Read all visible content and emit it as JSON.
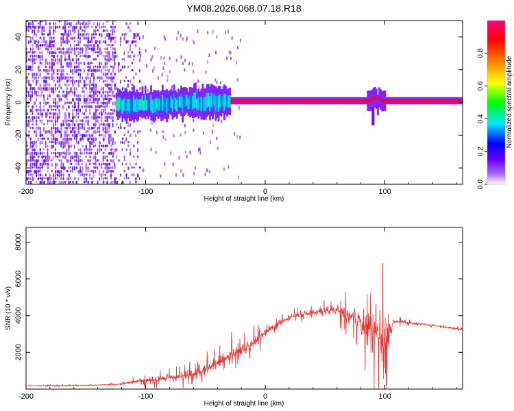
{
  "title": "YM08.2026.068.07.18.R18",
  "chart_data": [
    {
      "type": "heatmap",
      "name": "spectrogram",
      "xlabel": "Height of straight line (km)",
      "ylabel": "Frequency (Hz)",
      "xlim": [
        -200,
        165
      ],
      "ylim": [
        -50,
        50
      ],
      "x_ticks": [
        -200,
        -100,
        0,
        100
      ],
      "y_ticks": [
        -40,
        -20,
        0,
        20,
        40
      ],
      "colorbar": {
        "label": "Normalized spectral amplitude",
        "range": [
          0,
          1
        ],
        "ticks": [
          0.0,
          0.2,
          0.4,
          0.6,
          0.8
        ],
        "colormap": [
          "#ffffff",
          "#7a00ff",
          "#0000ff",
          "#00e5ff",
          "#00ff00",
          "#ffff00",
          "#ff8000",
          "#ff0000",
          "#ff0080"
        ]
      },
      "description_regions": [
        {
          "x_range": [
            -200,
            -120
          ],
          "freq_range": [
            -50,
            50
          ],
          "level": 0.1
        },
        {
          "x_range": [
            -120,
            -30
          ],
          "freq_center": 0,
          "freq_halfwidth": 6,
          "level": 0.35
        },
        {
          "x_range": [
            -30,
            165
          ],
          "freq_center": 1,
          "freq_halfwidth": 2,
          "level": 0.95
        }
      ]
    },
    {
      "type": "line",
      "name": "snr",
      "xlabel": "Height of straight line (km)",
      "ylabel": "SNR (10 * v/v)",
      "xlim": [
        -200,
        165
      ],
      "ylim": [
        0,
        8800
      ],
      "x_ticks": [
        -200,
        -100,
        0,
        100
      ],
      "y_ticks": [
        2000,
        4000,
        6000,
        8000
      ],
      "series_color": "#ee3333",
      "envelope": [
        {
          "x": -200,
          "base": 180,
          "amp": 60
        },
        {
          "x": -150,
          "base": 200,
          "amp": 60
        },
        {
          "x": -125,
          "base": 250,
          "amp": 80
        },
        {
          "x": -110,
          "base": 400,
          "amp": 300
        },
        {
          "x": -90,
          "base": 500,
          "amp": 600
        },
        {
          "x": -70,
          "base": 700,
          "amp": 700
        },
        {
          "x": -55,
          "base": 900,
          "amp": 900
        },
        {
          "x": -40,
          "base": 1400,
          "amp": 1200
        },
        {
          "x": -25,
          "base": 2000,
          "amp": 1300
        },
        {
          "x": -10,
          "base": 2500,
          "amp": 1000
        },
        {
          "x": 0,
          "base": 3100,
          "amp": 700
        },
        {
          "x": 20,
          "base": 3900,
          "amp": 500
        },
        {
          "x": 40,
          "base": 4200,
          "amp": 500
        },
        {
          "x": 60,
          "base": 4300,
          "amp": 800
        },
        {
          "x": 75,
          "base": 3900,
          "amp": 1800
        },
        {
          "x": 85,
          "base": 3300,
          "amp": 3000
        },
        {
          "x": 95,
          "base": 3000,
          "amp": 5600
        },
        {
          "x": 100,
          "base": 2500,
          "amp": 4500
        },
        {
          "x": 105,
          "base": 3200,
          "amp": 1500
        },
        {
          "x": 107,
          "base": 3700,
          "amp": 300
        },
        {
          "x": 130,
          "base": 3550,
          "amp": 150
        },
        {
          "x": 165,
          "base": 3250,
          "amp": 150
        }
      ]
    }
  ]
}
